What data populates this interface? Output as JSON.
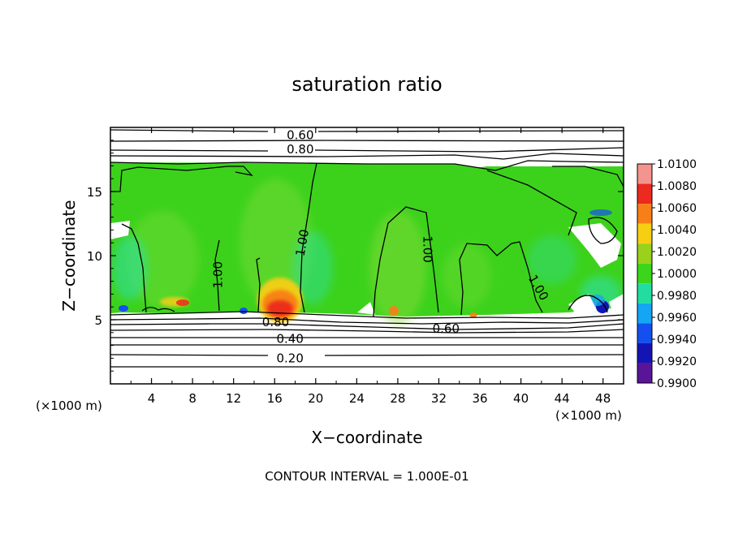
{
  "chart_data": {
    "type": "heatmap",
    "title": "saturation ratio",
    "xlabel": "X−coordinate",
    "ylabel": "Z−coordinate",
    "x_unit_left": "(×1000 m)",
    "x_unit_right": "(×1000 m)",
    "xlim": [
      0,
      50
    ],
    "ylim": [
      0,
      20
    ],
    "x_ticks": [
      4,
      8,
      12,
      16,
      20,
      24,
      28,
      32,
      36,
      40,
      44,
      48
    ],
    "y_ticks": [
      5,
      10,
      15
    ],
    "x_tick_labels": [
      "4",
      "8",
      "12",
      "16",
      "20",
      "24",
      "28",
      "32",
      "36",
      "40",
      "44",
      "48"
    ],
    "y_tick_labels": [
      "5",
      "10",
      "15"
    ],
    "colorbar": {
      "min": 0.99,
      "max": 1.01,
      "step": 0.002,
      "labels": [
        "1.0100",
        "1.0080",
        "1.0060",
        "1.0040",
        "1.0020",
        "1.0000",
        "0.9980",
        "0.9960",
        "0.9940",
        "0.9920",
        "0.9900"
      ],
      "colors": [
        "#f4948f",
        "#ec2a1f",
        "#f87f18",
        "#f6cf12",
        "#9ad11a",
        "#3bd61c",
        "#21dea0",
        "#14a6f4",
        "#1450f0",
        "#1414b4",
        "#5a1498"
      ]
    },
    "contour_interval_text": "CONTOUR INTERVAL = 1.000E-01",
    "contour_labels": [
      {
        "value": "0.60",
        "x": 18.5,
        "z": 19.4
      },
      {
        "value": "0.80",
        "x": 18.5,
        "z": 18.3
      },
      {
        "value": "1.00",
        "x": 10.5,
        "z": 8.5
      },
      {
        "value": "1.00",
        "x": 18.7,
        "z": 11.0
      },
      {
        "value": "1.00",
        "x": 30.9,
        "z": 10.5
      },
      {
        "value": "1.00",
        "x": 41.7,
        "z": 7.5
      },
      {
        "value": "0.80",
        "x": 16.1,
        "z": 4.8
      },
      {
        "value": "0.60",
        "x": 32.7,
        "z": 4.3
      },
      {
        "value": "0.40",
        "x": 17.5,
        "z": 3.5
      },
      {
        "value": "0.20",
        "x": 17.5,
        "z": 2.0
      }
    ],
    "grid": false
  }
}
